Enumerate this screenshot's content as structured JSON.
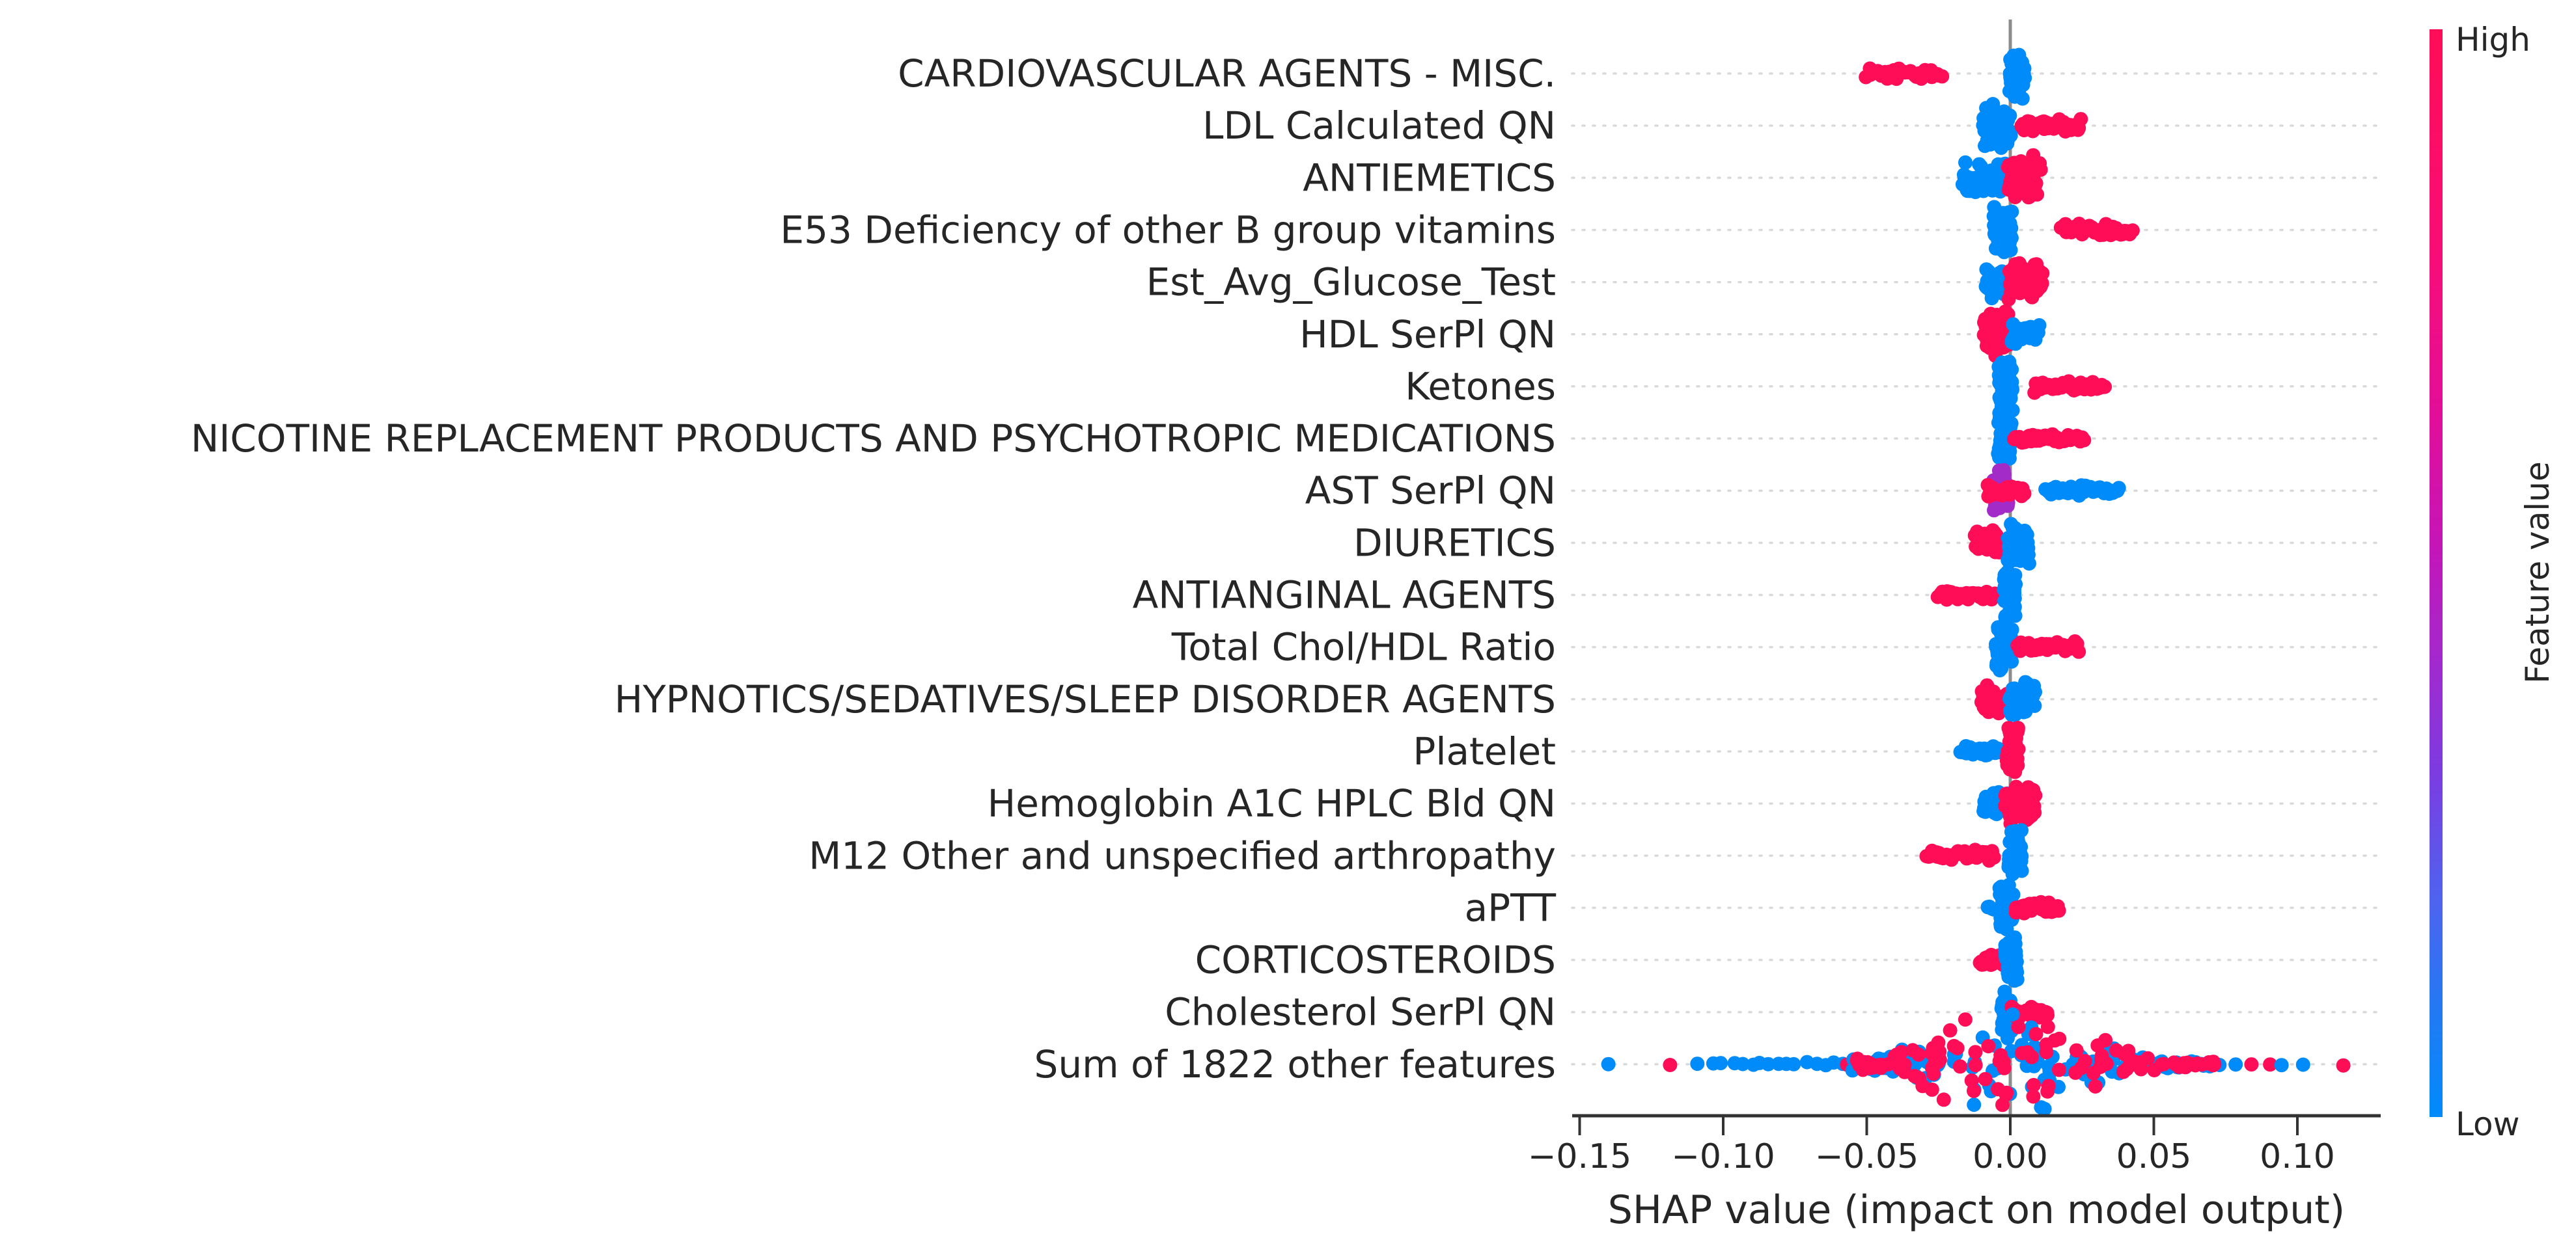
{
  "chart_data": {
    "type": "scatter",
    "subtype": "shap-beeswarm-summary",
    "title": "",
    "xlabel": "SHAP value (impact on model output)",
    "ylabel": "",
    "x_range": [
      -0.154,
      0.129
    ],
    "grid": "dotted-horizontal",
    "zero_line": true,
    "xticks": [
      {
        "v": -0.15,
        "label": "−0.15"
      },
      {
        "v": -0.1,
        "label": "−0.10"
      },
      {
        "v": -0.05,
        "label": "−0.05"
      },
      {
        "v": 0.0,
        "label": "0.00"
      },
      {
        "v": 0.05,
        "label": "0.05"
      },
      {
        "v": 0.1,
        "label": "0.10"
      }
    ],
    "colors": {
      "red": "#ff0d57",
      "blue": "#008bfb",
      "purple": "#a32cc8",
      "zero_line": "#8c8c8c",
      "axis": "#333333",
      "grid": "#d9d9d9",
      "text": "#262626"
    },
    "colorbar": {
      "high_label": "High",
      "low_label": "Low",
      "title": "Feature value",
      "gradient": [
        {
          "offset": "0%",
          "color": "#ff0d57"
        },
        {
          "offset": "20%",
          "color": "#f80d75"
        },
        {
          "offset": "35%",
          "color": "#e30e98"
        },
        {
          "offset": "48%",
          "color": "#c316b8"
        },
        {
          "offset": "58%",
          "color": "#a229cd"
        },
        {
          "offset": "68%",
          "color": "#7d3be0"
        },
        {
          "offset": "80%",
          "color": "#4e63ee"
        },
        {
          "offset": "90%",
          "color": "#2379f2"
        },
        {
          "offset": "100%",
          "color": "#008bfb"
        }
      ]
    },
    "rows": [
      {
        "label": "CARDIOVASCULAR AGENTS - MISC.",
        "clusters": [
          {
            "color": "red",
            "min": -0.05,
            "max": -0.024,
            "n": 34,
            "spread": 9
          },
          {
            "color": "blue",
            "min": -0.0002,
            "max": 0.005,
            "n": 55,
            "spread": 46
          }
        ]
      },
      {
        "label": "LDL Calculated QN",
        "clusters": [
          {
            "color": "blue",
            "min": -0.0095,
            "max": 0.0002,
            "n": 55,
            "spread": 40
          },
          {
            "color": "red",
            "min": 0.004,
            "max": 0.0245,
            "n": 42,
            "spread": 12
          }
        ]
      },
      {
        "label": "ANTIEMETICS",
        "clusters": [
          {
            "color": "blue",
            "min": -0.0165,
            "max": -0.0012,
            "n": 50,
            "spread": 26
          },
          {
            "color": "red",
            "min": -0.0008,
            "max": 0.0105,
            "n": 55,
            "spread": 38
          }
        ]
      },
      {
        "label": "E53 Deficiency of other B group vitamins",
        "clusters": [
          {
            "color": "blue",
            "min": -0.0058,
            "max": 0.0005,
            "n": 55,
            "spread": 40
          },
          {
            "color": "red",
            "min": 0.0178,
            "max": 0.0428,
            "n": 40,
            "spread": 11
          }
        ]
      },
      {
        "label": "Est_Avg_Glucose_Test",
        "clusters": [
          {
            "color": "blue",
            "min": -0.0085,
            "max": 0.0002,
            "n": 50,
            "spread": 30
          },
          {
            "color": "red",
            "min": -0.0005,
            "max": 0.0112,
            "n": 50,
            "spread": 32
          }
        ]
      },
      {
        "label": "HDL SerPl QN",
        "clusters": [
          {
            "color": "red",
            "min": -0.0092,
            "max": 0.0002,
            "n": 50,
            "spread": 38
          },
          {
            "color": "blue",
            "min": 0.0005,
            "max": 0.01,
            "n": 40,
            "spread": 18
          }
        ]
      },
      {
        "label": "Ketones",
        "clusters": [
          {
            "color": "blue",
            "min": -0.004,
            "max": 0.0008,
            "n": 55,
            "spread": 42
          },
          {
            "color": "red",
            "min": 0.0082,
            "max": 0.033,
            "n": 40,
            "spread": 10
          }
        ]
      },
      {
        "label": "NICOTINE REPLACEMENT PRODUCTS AND PSYCHOTROPIC MEDICATIONS",
        "clusters": [
          {
            "color": "blue",
            "min": -0.0042,
            "max": 0.0005,
            "n": 55,
            "spread": 40
          },
          {
            "color": "red",
            "min": 0.0015,
            "max": 0.0255,
            "n": 40,
            "spread": 9
          }
        ]
      },
      {
        "label": "AST SerPl QN",
        "clusters": [
          {
            "color": "purple",
            "min": -0.0058,
            "max": -0.0006,
            "n": 40,
            "spread": 42
          },
          {
            "color": "red",
            "min": -0.008,
            "max": 0.0048,
            "n": 30,
            "spread": 11
          },
          {
            "color": "blue",
            "min": 0.0125,
            "max": 0.0378,
            "n": 40,
            "spread": 9
          }
        ]
      },
      {
        "label": "DIURETICS",
        "clusters": [
          {
            "color": "red",
            "min": -0.0122,
            "max": -0.0015,
            "n": 36,
            "spread": 22
          },
          {
            "color": "blue",
            "min": -0.0008,
            "max": 0.0065,
            "n": 50,
            "spread": 34
          }
        ]
      },
      {
        "label": "ANTIANGINAL AGENTS",
        "clusters": [
          {
            "color": "red",
            "min": -0.0252,
            "max": -0.0055,
            "n": 36,
            "spread": 9
          },
          {
            "color": "blue",
            "min": -0.0022,
            "max": 0.0018,
            "n": 55,
            "spread": 42
          }
        ]
      },
      {
        "label": "Total Chol/HDL Ratio",
        "clusters": [
          {
            "color": "blue",
            "min": -0.005,
            "max": 0.0006,
            "n": 55,
            "spread": 42
          },
          {
            "color": "red",
            "min": 0.0028,
            "max": 0.0238,
            "n": 40,
            "spread": 10
          }
        ]
      },
      {
        "label": "HYPNOTICS/SEDATIVES/SLEEP DISORDER AGENTS",
        "clusters": [
          {
            "color": "red",
            "min": -0.01,
            "max": -0.0008,
            "n": 36,
            "spread": 24
          },
          {
            "color": "blue",
            "min": -0.0002,
            "max": 0.0086,
            "n": 50,
            "spread": 30
          }
        ]
      },
      {
        "label": "Platelet",
        "clusters": [
          {
            "color": "blue",
            "min": -0.0172,
            "max": -0.0015,
            "n": 40,
            "spread": 9
          },
          {
            "color": "red",
            "min": -0.0012,
            "max": 0.0028,
            "n": 55,
            "spread": 44
          }
        ]
      },
      {
        "label": "Hemoglobin A1C HPLC Bld QN",
        "clusters": [
          {
            "color": "blue",
            "min": -0.0093,
            "max": -0.0002,
            "n": 45,
            "spread": 20
          },
          {
            "color": "red",
            "min": -0.0018,
            "max": 0.0086,
            "n": 52,
            "spread": 40
          }
        ]
      },
      {
        "label": "M12 Other and unspecified arthropathy",
        "clusters": [
          {
            "color": "red",
            "min": -0.029,
            "max": -0.0055,
            "n": 38,
            "spread": 9
          },
          {
            "color": "blue",
            "min": -0.0006,
            "max": 0.004,
            "n": 55,
            "spread": 44
          }
        ]
      },
      {
        "label": "aPTT",
        "clusters": [
          {
            "color": "blue",
            "min": -0.008,
            "max": -0.006,
            "n": 4,
            "spread": 6
          },
          {
            "color": "blue",
            "min": -0.0038,
            "max": 0.001,
            "n": 52,
            "spread": 42
          },
          {
            "color": "red",
            "min": 0.0018,
            "max": 0.0168,
            "n": 38,
            "spread": 10
          }
        ]
      },
      {
        "label": "CORTICOSTEROIDS",
        "clusters": [
          {
            "color": "red",
            "min": -0.0105,
            "max": -0.0016,
            "n": 28,
            "spread": 13
          },
          {
            "color": "blue",
            "min": -0.0018,
            "max": 0.0024,
            "n": 52,
            "spread": 42
          }
        ]
      },
      {
        "label": "Cholesterol SerPl QN",
        "clusters": [
          {
            "color": "blue",
            "min": -0.003,
            "max": 0.001,
            "n": 52,
            "spread": 42
          },
          {
            "color": "red",
            "min": 0.0006,
            "max": 0.013,
            "n": 38,
            "spread": 10
          }
        ]
      },
      {
        "label": "Sum of 1822 other features",
        "clusters": [
          {
            "color": "blue",
            "min": -0.14,
            "max": -0.14,
            "n": 1,
            "spread": 2
          },
          {
            "color": "red",
            "min": -0.1185,
            "max": -0.1185,
            "n": 1,
            "spread": 2
          },
          {
            "color": "blue",
            "min": -0.109,
            "max": -0.109,
            "n": 1,
            "spread": 2
          },
          {
            "color": "blue",
            "min": -0.103,
            "max": -0.081,
            "n": 8,
            "spread": 3
          },
          {
            "color": "blue",
            "min": -0.078,
            "max": -0.078,
            "n": 1,
            "spread": 2
          },
          {
            "color": "blue",
            "min": -0.075,
            "max": -0.058,
            "n": 6,
            "spread": 4
          },
          {
            "color": "red",
            "min": -0.056,
            "max": -0.038,
            "n": 8,
            "spread": 10,
            "jitter": true
          },
          {
            "color": "blue",
            "min": -0.057,
            "max": 0.074,
            "n": 120,
            "spread": 85,
            "taper": true,
            "jitter": true
          },
          {
            "color": "red",
            "min": -0.054,
            "max": 0.075,
            "n": 120,
            "spread": 85,
            "taper": true,
            "jitter": true
          },
          {
            "color": "blue",
            "min": 0.0785,
            "max": 0.0785,
            "n": 1,
            "spread": 2
          },
          {
            "color": "red",
            "min": 0.084,
            "max": 0.084,
            "n": 1,
            "spread": 2
          },
          {
            "color": "red",
            "min": 0.0905,
            "max": 0.0905,
            "n": 1,
            "spread": 2
          },
          {
            "color": "blue",
            "min": 0.0945,
            "max": 0.0945,
            "n": 1,
            "spread": 2
          },
          {
            "color": "blue",
            "min": 0.102,
            "max": 0.102,
            "n": 1,
            "spread": 2
          },
          {
            "color": "red",
            "min": 0.116,
            "max": 0.116,
            "n": 1,
            "spread": 2
          }
        ]
      }
    ]
  }
}
